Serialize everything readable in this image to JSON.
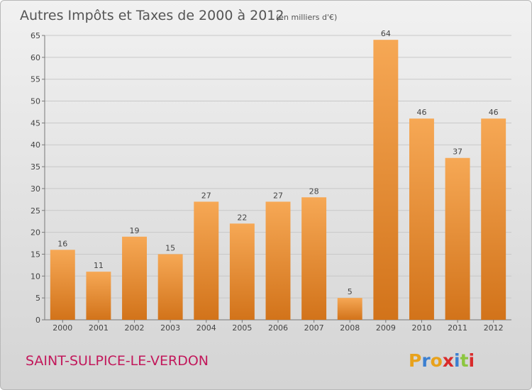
{
  "chart_data": {
    "type": "bar",
    "title": "Autres Impôts et Taxes de 2000 à 2012",
    "subtitle": "(en milliers d'€)",
    "xlabel": "",
    "ylabel": "",
    "categories": [
      "2000",
      "2001",
      "2002",
      "2003",
      "2004",
      "2005",
      "2006",
      "2007",
      "2008",
      "2009",
      "2010",
      "2011",
      "2012"
    ],
    "values": [
      16,
      11,
      19,
      15,
      27,
      22,
      27,
      28,
      5,
      64,
      46,
      37,
      46
    ],
    "ylim": [
      0,
      65
    ],
    "yticks": [
      0,
      5,
      10,
      15,
      20,
      25,
      30,
      35,
      40,
      45,
      50,
      55,
      60,
      65
    ],
    "grid": true,
    "legend": "none"
  },
  "footer": {
    "commune": "SAINT-SULPICE-LE-VERDON",
    "logo": "Proxiti"
  },
  "colors": {
    "bar_light": "#f6a855",
    "bar_dark": "#d2731a",
    "commune_text": "#c2185b",
    "logo_letters": [
      "#e8a21c",
      "#3b7fd1",
      "#e8a21c",
      "#d92b2b",
      "#3b7fd1",
      "#8cc63f",
      "#d92b2b"
    ]
  }
}
